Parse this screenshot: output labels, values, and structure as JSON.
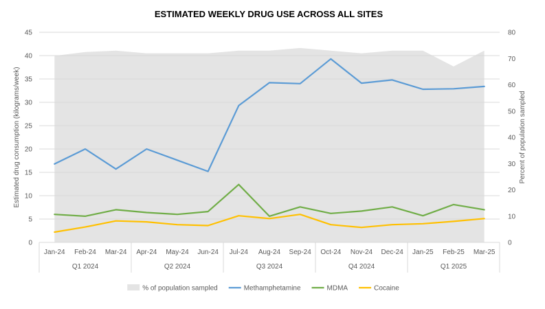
{
  "chart_data": {
    "type": "line",
    "title": "ESTIMATED WEEKLY DRUG USE ACROSS ALL SITES",
    "ylabel": "Estimated drug consumption (kilograms/week)",
    "y2label": "Percent of population sampled",
    "ylim": [
      0,
      45
    ],
    "yticks": [
      0,
      5,
      10,
      15,
      20,
      25,
      30,
      35,
      40,
      45
    ],
    "y2lim": [
      0,
      80
    ],
    "y2ticks": [
      0,
      10,
      20,
      30,
      40,
      50,
      60,
      70,
      80
    ],
    "grid": true,
    "legend_position": "bottom",
    "categories": [
      "Jan-24",
      "Feb-24",
      "Mar-24",
      "Apr-24",
      "May-24",
      "Jun-24",
      "Jul-24",
      "Aug-24",
      "Sep-24",
      "Oct-24",
      "Nov-24",
      "Dec-24",
      "Jan-25",
      "Feb-25",
      "Mar-25"
    ],
    "groups": [
      {
        "label": "Q1 2024",
        "count": 3
      },
      {
        "label": "Q2 2024",
        "count": 3
      },
      {
        "label": "Q3 2024",
        "count": 3
      },
      {
        "label": "Q4 2024",
        "count": 3
      },
      {
        "label": "Q1 2025",
        "count": 3
      }
    ],
    "area_series": {
      "name": "% of population sampled",
      "axis": "right",
      "color": "#e4e4e4",
      "values": [
        71,
        72.5,
        73,
        72,
        72,
        72,
        73,
        73,
        74,
        73,
        72,
        73,
        73,
        67,
        73
      ]
    },
    "series": [
      {
        "name": "Methamphetamine",
        "color": "#5b9bd5",
        "values": [
          16.8,
          20.0,
          15.7,
          20.0,
          17.6,
          15.2,
          29.3,
          34.2,
          34.0,
          39.3,
          34.1,
          34.8,
          32.8,
          32.9,
          33.4
        ]
      },
      {
        "name": "MDMA",
        "color": "#70ad47",
        "values": [
          6.0,
          5.6,
          7.0,
          6.4,
          6.0,
          6.6,
          12.4,
          5.6,
          7.6,
          6.2,
          6.7,
          7.6,
          5.7,
          8.1,
          7.0
        ]
      },
      {
        "name": "Cocaine",
        "color": "#ffc000",
        "values": [
          2.2,
          3.3,
          4.6,
          4.4,
          3.8,
          3.6,
          5.7,
          5.1,
          6.0,
          3.8,
          3.2,
          3.8,
          4.0,
          4.5,
          5.1
        ]
      }
    ]
  }
}
